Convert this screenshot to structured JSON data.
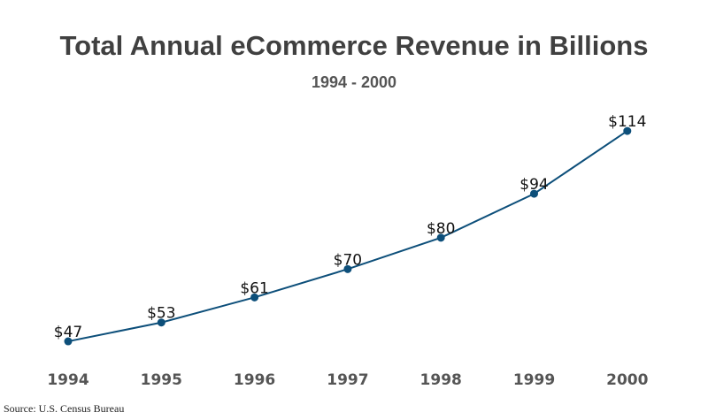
{
  "chart_data": {
    "type": "line",
    "title": "Total Annual eCommerce Revenue in Billions",
    "subtitle": "1994 - 2000",
    "categories": [
      "1994",
      "1995",
      "1996",
      "1997",
      "1998",
      "1999",
      "2000"
    ],
    "values": [
      47,
      53,
      61,
      70,
      80,
      94,
      114
    ],
    "data_labels": [
      "$47",
      "$53",
      "$61",
      "$70",
      "$80",
      "$94",
      "$114"
    ],
    "xlabel": "",
    "ylabel": "",
    "grid": false,
    "line_color": "#0d4f7a",
    "source": "Source: U.S. Census Bureau"
  }
}
